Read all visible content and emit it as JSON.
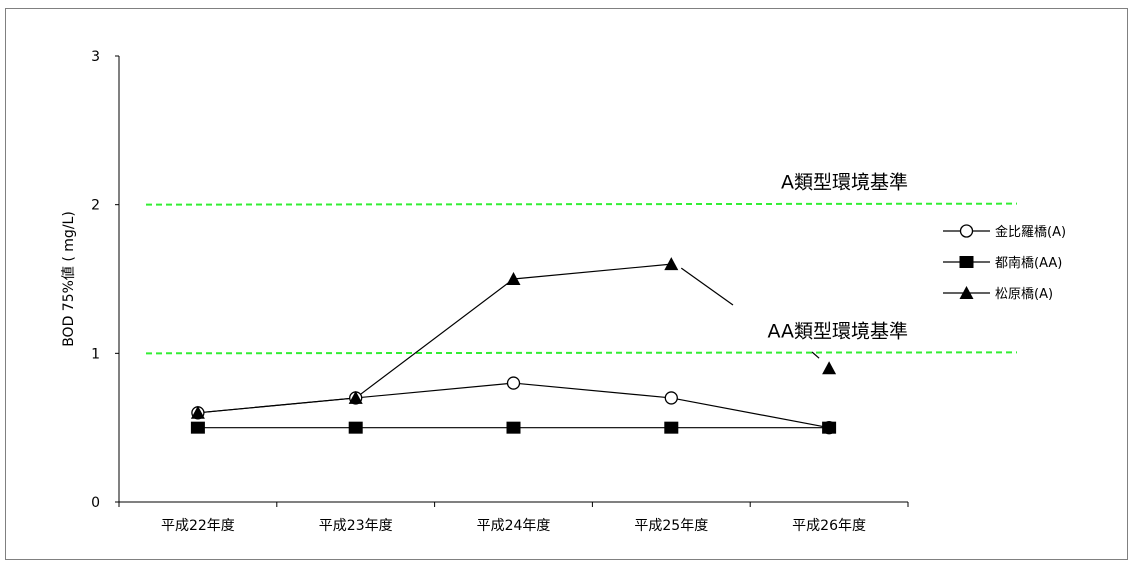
{
  "chart_data": {
    "type": "line",
    "title": "",
    "xlabel": "",
    "ylabel": "BOD 75%値 ( mg/L)",
    "categories": [
      "平成22年度",
      "平成23年度",
      "平成24年度",
      "平成25年度",
      "平成26年度"
    ],
    "ylim": [
      0,
      3
    ],
    "yticks": [
      0,
      1,
      2,
      3
    ],
    "grid": false,
    "legend_position": "right",
    "series": [
      {
        "name": "金比羅橋(A)",
        "marker": "open-circle",
        "color": "#000000",
        "values": [
          0.6,
          0.7,
          0.8,
          0.7,
          0.5
        ]
      },
      {
        "name": "都南橋(AA)",
        "marker": "filled-square",
        "color": "#000000",
        "values": [
          0.5,
          0.5,
          0.5,
          0.5,
          0.5
        ]
      },
      {
        "name": "松原橋(A)",
        "marker": "filled-triangle",
        "color": "#000000",
        "values": [
          0.6,
          0.7,
          1.5,
          1.6,
          null
        ]
      }
    ],
    "reference_lines": [
      {
        "label": "A類型環境基準",
        "value": 2.0,
        "color": "#33ee33"
      },
      {
        "label": "AA類型環境基準",
        "value": 1.0,
        "color": "#33ee33"
      }
    ],
    "annotations": [
      {
        "label": "",
        "symbol": "filled-triangle",
        "category": "平成26年度",
        "value": 0.9
      }
    ]
  }
}
